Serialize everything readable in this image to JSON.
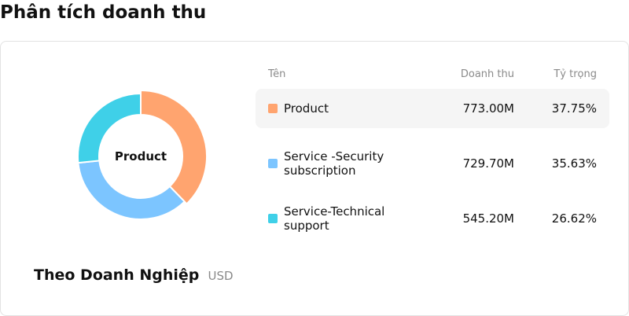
{
  "page": {
    "title": "Phân tích doanh thu"
  },
  "card": {
    "caption_title": "Theo Doanh Nghiệp",
    "caption_unit": "USD",
    "center_label": "Product"
  },
  "table": {
    "headers": {
      "name": "Tên",
      "revenue": "Doanh thu",
      "share": "Tỷ trọng"
    },
    "rows": [
      {
        "name": "Product",
        "revenue": "773.00M",
        "share": "37.75%",
        "color": "#ffa46f",
        "active": true
      },
      {
        "name": "Service -Security subscription",
        "revenue": "729.70M",
        "share": "35.63%",
        "color": "#7cc5ff",
        "active": false
      },
      {
        "name": "Service-Technical support",
        "revenue": "545.20M",
        "share": "26.62%",
        "color": "#3fd0e8",
        "active": false
      }
    ]
  },
  "chart_data": {
    "type": "pie",
    "categories": [
      "Product",
      "Service -Security subscription",
      "Service-Technical support"
    ],
    "values": [
      773.0,
      729.7,
      545.2
    ],
    "colors": [
      "#ffa46f",
      "#7cc5ff",
      "#3fd0e8"
    ],
    "highlighted": "Product"
  }
}
